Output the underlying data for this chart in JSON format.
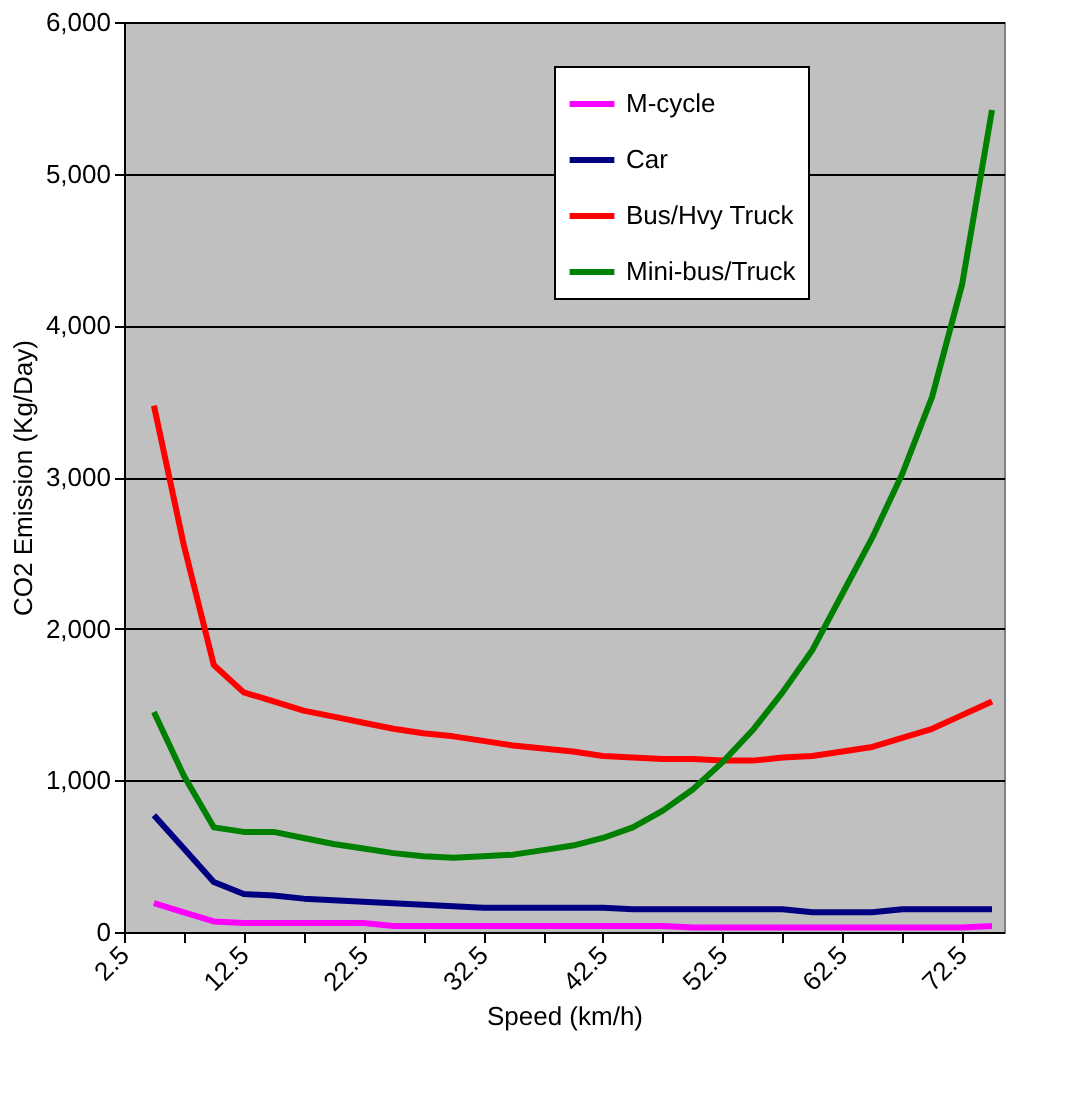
{
  "chart_data": {
    "type": "line",
    "xlabel": "Speed (km/h)",
    "ylabel": "CO2 Emission (Kg/Day)",
    "x": [
      5,
      7.5,
      10,
      12.5,
      15,
      17.5,
      20,
      22.5,
      25,
      27.5,
      30,
      32.5,
      35,
      37.5,
      40,
      42.5,
      45,
      47.5,
      50,
      52.5,
      55,
      57.5,
      60,
      62.5,
      65,
      67.5,
      70,
      72.5,
      75
    ],
    "series": [
      {
        "name": "M-cycle",
        "color": "#ff00ff",
        "values": [
          190,
          130,
          70,
          60,
          60,
          60,
          60,
          60,
          40,
          40,
          40,
          40,
          40,
          40,
          40,
          40,
          40,
          40,
          30,
          30,
          30,
          30,
          30,
          30,
          30,
          30,
          30,
          30,
          40
        ]
      },
      {
        "name": "Car",
        "color": "#000080",
        "values": [
          770,
          550,
          330,
          250,
          240,
          220,
          210,
          200,
          190,
          180,
          170,
          160,
          160,
          160,
          160,
          160,
          150,
          150,
          150,
          150,
          150,
          150,
          130,
          130,
          130,
          150,
          150,
          150,
          150
        ]
      },
      {
        "name": "Bus/Hvy Truck",
        "color": "#ff0000",
        "values": [
          3470,
          2550,
          1760,
          1580,
          1520,
          1460,
          1420,
          1380,
          1340,
          1310,
          1290,
          1260,
          1230,
          1210,
          1190,
          1160,
          1150,
          1140,
          1140,
          1130,
          1130,
          1150,
          1160,
          1190,
          1220,
          1280,
          1340,
          1430,
          1520
        ]
      },
      {
        "name": "Mini-bus/Truck",
        "color": "#008000",
        "values": [
          1450,
          1030,
          690,
          660,
          660,
          620,
          580,
          550,
          520,
          500,
          490,
          500,
          510,
          540,
          570,
          620,
          690,
          800,
          940,
          1120,
          1330,
          1580,
          1860,
          2230,
          2600,
          3020,
          3530,
          4270,
          5420
        ]
      }
    ],
    "xlim": [
      2.5,
      76
    ],
    "xticks": [
      2.5,
      {
        "value": 7.5,
        "label": null
      },
      12.5,
      {
        "value": 17.5,
        "label": null
      },
      22.5,
      {
        "value": 27.5,
        "label": null
      },
      32.5,
      {
        "value": 37.5,
        "label": null
      },
      42.5,
      {
        "value": 47.5,
        "label": null
      },
      52.5,
      {
        "value": 57.5,
        "label": null
      },
      62.5,
      {
        "value": 67.5,
        "label": null
      },
      72.5
    ],
    "ylim": [
      0,
      6000
    ],
    "yticks": [
      0,
      {
        "value": 1000,
        "label": "1,000"
      },
      {
        "value": 2000,
        "label": "2,000"
      },
      {
        "value": 3000,
        "label": "3,000"
      },
      {
        "value": 4000,
        "label": "4,000"
      },
      {
        "value": 5000,
        "label": "5,000"
      },
      {
        "value": 6000,
        "label": "6,000"
      }
    ],
    "grid": "y",
    "legend": "top right",
    "marker": "none",
    "line_style": "solid"
  }
}
